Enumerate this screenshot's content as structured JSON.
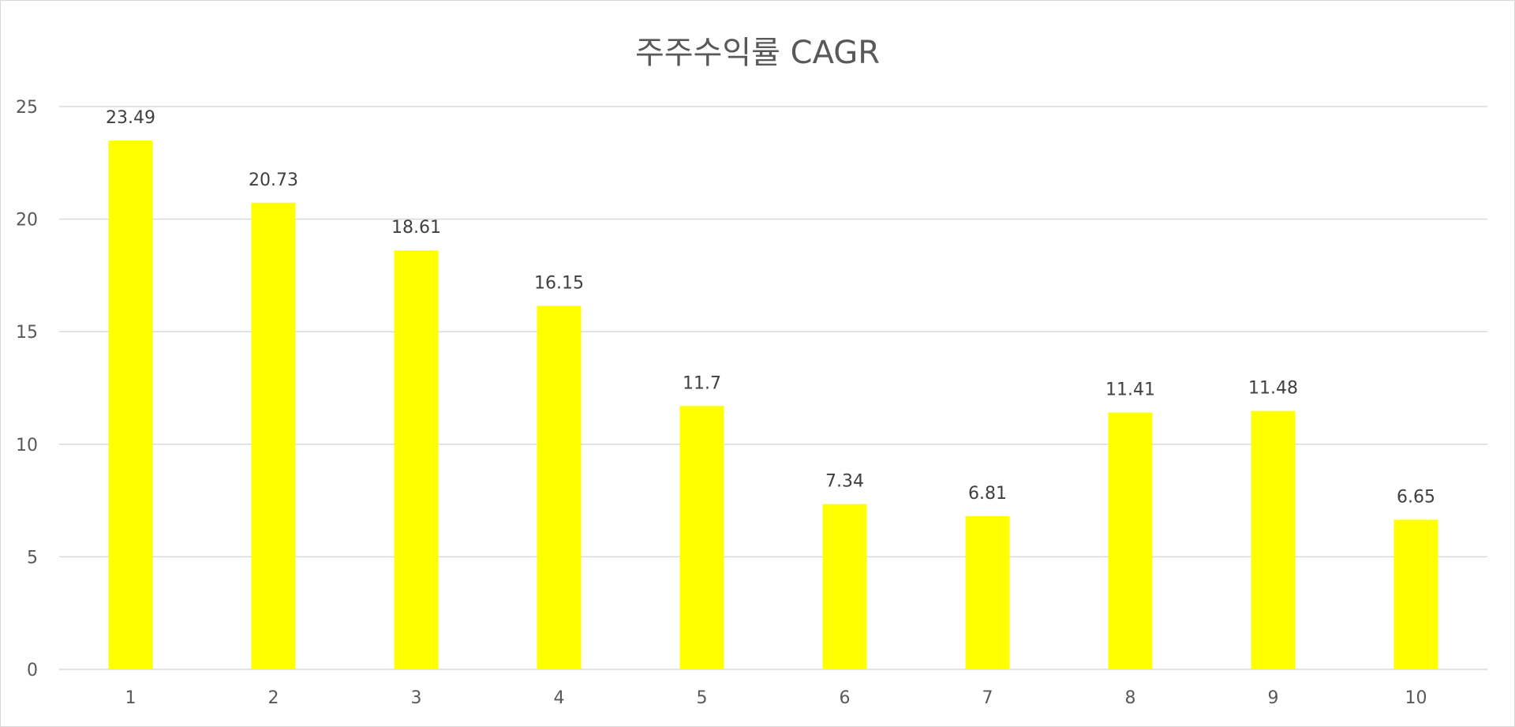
{
  "chart_data": {
    "type": "bar",
    "title": "주주수익률 CAGR",
    "categories": [
      "1",
      "2",
      "3",
      "4",
      "5",
      "6",
      "7",
      "8",
      "9",
      "10"
    ],
    "values": [
      23.49,
      20.73,
      18.61,
      16.15,
      11.7,
      7.34,
      6.81,
      11.41,
      11.48,
      6.65
    ],
    "data_labels": [
      "23.49",
      "20.73",
      "18.61",
      "16.15",
      "11.7",
      "7.34",
      "6.81",
      "11.41",
      "11.48",
      "6.65"
    ],
    "y_ticks": [
      "0",
      "5",
      "10",
      "15",
      "20",
      "25"
    ],
    "xlabel": "",
    "ylabel": "",
    "ylim": [
      0,
      25
    ],
    "grid": true,
    "legend": "none",
    "bar_color": "#FFFF00",
    "gridline_color": "#d9d9d9",
    "text_color": "#595959"
  }
}
